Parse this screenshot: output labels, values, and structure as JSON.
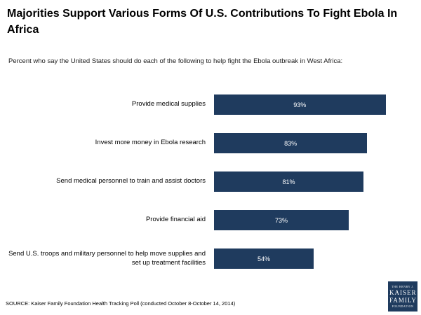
{
  "header": {
    "title": "Majorities Support Various Forms Of U.S. Contributions To Fight Ebola In Africa",
    "subtitle": "Percent who say the United States should do each of the following to help fight the Ebola outbreak in West Africa:"
  },
  "chart_data": {
    "type": "bar",
    "orientation": "horizontal",
    "title": "Majorities Support Various Forms Of U.S. Contributions To Fight Ebola In Africa",
    "subtitle": "Percent who say the United States should do each of the following to help fight the Ebola outbreak in West Africa:",
    "categories": [
      "Provide medical supplies",
      "Invest more money in Ebola research",
      "Send medical personnel to train and assist doctors",
      "Provide financial aid",
      "Send U.S. troops and military personnel to help move supplies and set up treatment facilities"
    ],
    "values": [
      93,
      83,
      81,
      73,
      54
    ],
    "value_labels": [
      "93%",
      "83%",
      "81%",
      "73%",
      "54%"
    ],
    "xlim": [
      0,
      100
    ],
    "grid": false,
    "legend": "none",
    "bar_color": "#1f3b5e",
    "value_label_color": "#ffffff"
  },
  "footer": {
    "source": "SOURCE: Kaiser Family Foundation Health Tracking Poll (conducted October 8-October 14, 2014)",
    "logo": {
      "line1": "THE HENRY J.",
      "line2": "KAISER",
      "line3": "FAMILY",
      "line4": "FOUNDATION",
      "bg_color": "#1f3b5e"
    }
  }
}
